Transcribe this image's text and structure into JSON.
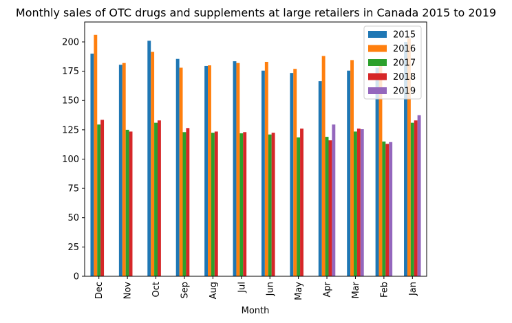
{
  "chart_data": {
    "type": "bar",
    "title": "Monthly sales of OTC drugs and supplements at large retailers in Canada 2015 to 2019",
    "xlabel": "Month",
    "ylabel": "",
    "categories": [
      "Dec",
      "Nov",
      "Oct",
      "Sep",
      "Aug",
      "Jul",
      "Jun",
      "May",
      "Apr",
      "Mar",
      "Feb",
      "Jan"
    ],
    "ylim": [
      0,
      217
    ],
    "yticks": [
      0,
      25,
      50,
      75,
      100,
      125,
      150,
      175,
      200
    ],
    "grid": false,
    "legend_position": "top-right",
    "series": [
      {
        "name": "2015",
        "color": "#1f77b4",
        "values": [
          190,
          180.5,
          201,
          185.5,
          179.5,
          183.5,
          175.5,
          173.5,
          166.5,
          175.5,
          178,
          200
        ]
      },
      {
        "name": "2016",
        "color": "#ff7f0e",
        "values": [
          206,
          182,
          191.5,
          178,
          180,
          182,
          183,
          177,
          188,
          184.5,
          182.5,
          203
        ]
      },
      {
        "name": "2017",
        "color": "#2ca02c",
        "values": [
          129.5,
          125,
          131,
          123,
          122.5,
          122,
          121,
          118.5,
          119,
          123.5,
          115,
          131
        ]
      },
      {
        "name": "2018",
        "color": "#d62728",
        "values": [
          133.5,
          123.5,
          133,
          126.5,
          123.5,
          123,
          122.5,
          126,
          116,
          126,
          113,
          133
        ]
      },
      {
        "name": "2019",
        "color": "#9467bd",
        "values": [
          null,
          null,
          null,
          null,
          null,
          null,
          null,
          null,
          129.5,
          125.5,
          114.5,
          137.5
        ]
      }
    ]
  }
}
